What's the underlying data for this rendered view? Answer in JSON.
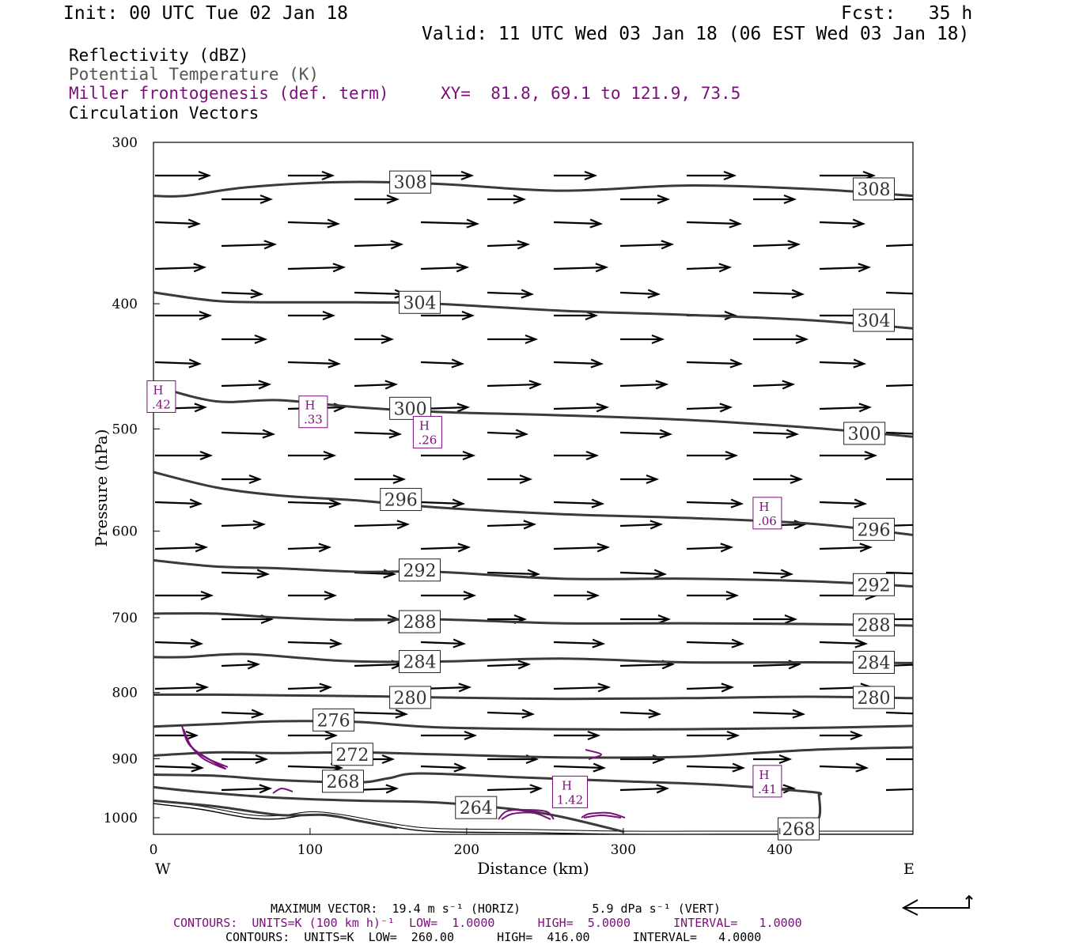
{
  "header": {
    "init": "Init: 00 UTC Tue 02 Jan 18",
    "fcst": "Fcst:   35 h",
    "valid": "Valid: 11 UTC Wed 03 Jan 18 (06 EST Wed 03 Jan 18)"
  },
  "legend": {
    "line1": "Reflectivity (dBZ)",
    "line2": "Potential Temperature (K)",
    "line3": "Miller frontogenesis (def. term)",
    "xy": "XY=  81.8, 69.1 to 121.9, 73.5",
    "line4": "Circulation Vectors"
  },
  "footer": {
    "max_vector": "MAXIMUM VECTOR:  19.4 m s⁻¹ (HORIZ)          5.9 dPa s⁻¹ (VERT)",
    "contours_purple": "CONTOURS:  UNITS=K (100 km h)⁻¹  LOW=  1.0000      HIGH=  5.0000      INTERVAL=   1.0000",
    "contours_black": "CONTOURS:  UNITS=K  LOW=  260.00      HIGH=  416.00      INTERVAL=   4.0000"
  },
  "colors": {
    "theta": "#3a3a3a",
    "frontogenesis": "#7a0f7a",
    "vectors": "#000000"
  },
  "chart_data": {
    "type": "cross-section",
    "xlabel": "Distance (km)",
    "ylabel": "Pressure (hPa)",
    "xlim": [
      0,
      485
    ],
    "ylim": [
      300,
      1030
    ],
    "y_log": true,
    "x_ticks": [
      0,
      100,
      200,
      300,
      400
    ],
    "y_ticks": [
      300,
      400,
      500,
      600,
      700,
      800,
      900,
      1000
    ],
    "x_end_labels": {
      "left": "W",
      "right": "E"
    },
    "theta_contours": [
      {
        "label": "308",
        "x": [
          0,
          20,
          60,
          120,
          180,
          260,
          340,
          420,
          485
        ],
        "p": [
          330,
          330,
          325,
          322,
          323,
          327,
          324,
          326,
          330
        ]
      },
      {
        "label": "304",
        "x": [
          0,
          40,
          80,
          130,
          180,
          260,
          340,
          420,
          485
        ],
        "p": [
          392,
          398,
          399,
          399,
          400,
          405,
          408,
          412,
          418
        ]
      },
      {
        "label": "300",
        "x": [
          0,
          40,
          80,
          130,
          180,
          260,
          340,
          420,
          485
        ],
        "p": [
          463,
          476,
          475,
          481,
          485,
          488,
          492,
          499,
          507
        ]
      },
      {
        "label": "296",
        "x": [
          0,
          40,
          80,
          130,
          180,
          260,
          340,
          420,
          485
        ],
        "p": [
          540,
          555,
          563,
          568,
          575,
          582,
          586,
          592,
          604
        ]
      },
      {
        "label": "292",
        "x": [
          0,
          40,
          80,
          130,
          180,
          260,
          340,
          420,
          485
        ],
        "p": [
          632,
          639,
          641,
          645,
          645,
          653,
          653,
          656,
          662
        ]
      },
      {
        "label": "288",
        "x": [
          0,
          40,
          80,
          130,
          180,
          260,
          340,
          420,
          485
        ],
        "p": [
          695,
          695,
          700,
          703,
          702,
          707,
          707,
          708,
          710
        ]
      },
      {
        "label": "284",
        "x": [
          0,
          20,
          60,
          120,
          180,
          260,
          340,
          420,
          485
        ],
        "p": [
          751,
          751,
          747,
          756,
          757,
          753,
          758,
          758,
          759
        ]
      },
      {
        "label": "280",
        "x": [
          0,
          40,
          80,
          130,
          180,
          260,
          340,
          420,
          485
        ],
        "p": [
          803,
          803,
          804,
          805,
          807,
          809,
          808,
          806,
          808
        ]
      },
      {
        "label": "276",
        "x": [
          0,
          40,
          80,
          130,
          180,
          260,
          340,
          420,
          485
        ],
        "p": [
          850,
          846,
          842,
          843,
          851,
          854,
          854,
          852,
          849
        ]
      },
      {
        "label": "272",
        "x": [
          0,
          40,
          80,
          130,
          180,
          260,
          340,
          420,
          485
        ],
        "p": [
          895,
          890,
          891,
          890,
          893,
          898,
          897,
          886,
          882
        ]
      },
      {
        "label": "268",
        "x": [
          0,
          40,
          80,
          130,
          150,
          170,
          230,
          300,
          360,
          420,
          425
        ],
        "p": [
          926,
          928,
          935,
          939,
          932,
          924,
          930,
          937,
          943,
          955,
          960
        ]
      },
      {
        "label": "264",
        "x": [
          0,
          30,
          80,
          130,
          180,
          230,
          260,
          300
        ],
        "p": [
          947,
          955,
          965,
          970,
          973,
          985,
          998,
          1025
        ]
      },
      {
        "label": "",
        "x": [
          0,
          40,
          80,
          110,
          130,
          155
        ],
        "p": [
          970,
          980,
          995,
          995,
          1005,
          1018
        ]
      },
      {
        "label": "268",
        "x": [
          415,
          425,
          425
        ],
        "p": [
          1025,
          1000,
          960
        ]
      }
    ],
    "theta_labels": [
      {
        "text": "308",
        "x": 164,
        "p": 322
      },
      {
        "text": "308",
        "x": 460,
        "p": 326
      },
      {
        "text": "304",
        "x": 170,
        "p": 399
      },
      {
        "text": "304",
        "x": 460,
        "p": 412
      },
      {
        "text": "300",
        "x": 164,
        "p": 482
      },
      {
        "text": "300",
        "x": 454,
        "p": 504
      },
      {
        "text": "296",
        "x": 158,
        "p": 567
      },
      {
        "text": "296",
        "x": 460,
        "p": 598
      },
      {
        "text": "292",
        "x": 170,
        "p": 643
      },
      {
        "text": "292",
        "x": 460,
        "p": 660
      },
      {
        "text": "288",
        "x": 170,
        "p": 705
      },
      {
        "text": "288",
        "x": 460,
        "p": 709
      },
      {
        "text": "284",
        "x": 170,
        "p": 757
      },
      {
        "text": "284",
        "x": 460,
        "p": 758
      },
      {
        "text": "280",
        "x": 164,
        "p": 807
      },
      {
        "text": "280",
        "x": 460,
        "p": 807
      },
      {
        "text": "276",
        "x": 115,
        "p": 840
      },
      {
        "text": "272",
        "x": 127,
        "p": 893
      },
      {
        "text": "268",
        "x": 121,
        "p": 937
      },
      {
        "text": "264",
        "x": 206,
        "p": 982
      },
      {
        "text": "268",
        "x": 412,
        "p": 1020
      }
    ],
    "terrain": {
      "x": [
        0,
        30,
        60,
        80,
        100,
        120,
        150,
        180,
        240,
        300,
        360,
        485
      ],
      "p": [
        975,
        985,
        1000,
        1002,
        995,
        1000,
        1015,
        1025,
        1027,
        1030,
        1030,
        1030
      ]
    },
    "frontogenesis_maxima": [
      {
        "label": "H",
        "value": ".42",
        "x": 5,
        "p": 472
      },
      {
        "label": "H",
        "value": ".33",
        "x": 102,
        "p": 485
      },
      {
        "label": "H",
        "value": ".26",
        "x": 175,
        "p": 503
      },
      {
        "label": "H",
        "value": ".06",
        "x": 392,
        "p": 581
      },
      {
        "label": "H",
        "value": ".41",
        "x": 392,
        "p": 937
      },
      {
        "label": "H",
        "value": "1.42",
        "x": 266,
        "p": 955
      }
    ],
    "max_vector": {
      "horiz": 19.4,
      "horiz_units": "m s-1",
      "vert": 5.9,
      "vert_units": "dPa s-1"
    },
    "contour_theta": {
      "units": "K",
      "low": 260.0,
      "high": 416.0,
      "interval": 4.0
    },
    "contour_frontogenesis": {
      "units": "K (100 km h)-1",
      "low": 1.0,
      "high": 5.0,
      "interval": 1.0
    }
  }
}
